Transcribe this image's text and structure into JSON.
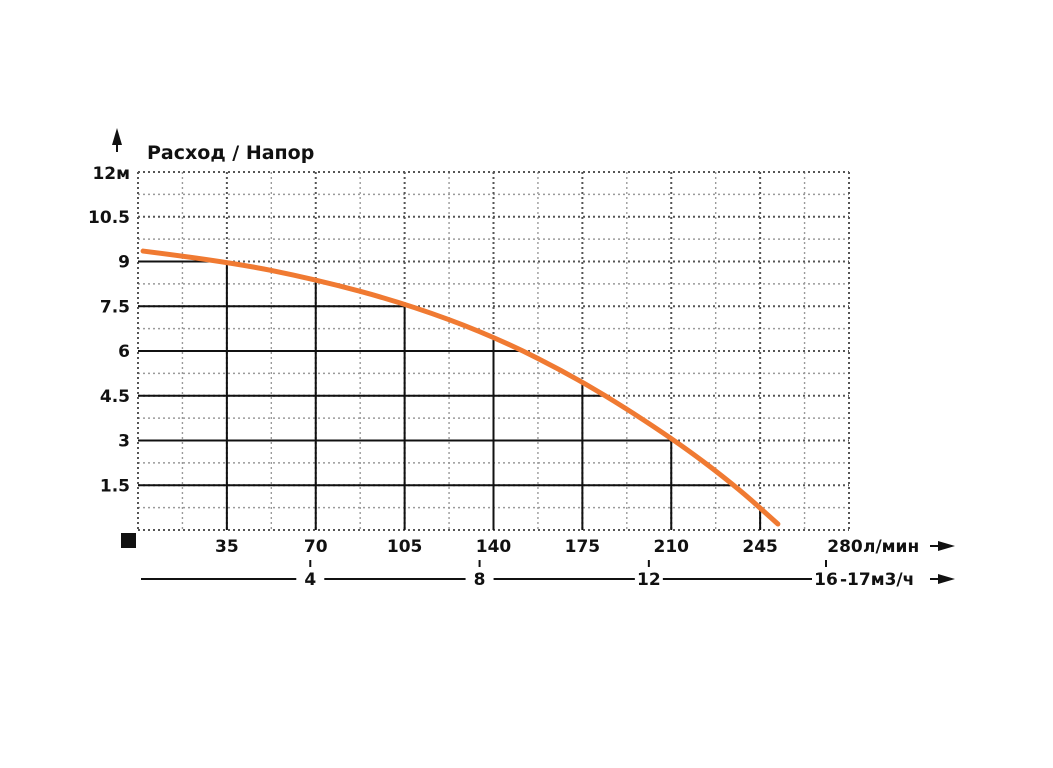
{
  "chart_data": {
    "type": "line",
    "title": "Расход / Напор",
    "y_unit_label": "12м",
    "y_ticks": [
      "1.5",
      "3",
      "4.5",
      "6",
      "7.5",
      "9",
      "10.5"
    ],
    "y_tick_values": [
      1.5,
      3,
      4.5,
      6,
      7.5,
      9,
      10.5
    ],
    "ylim": [
      0,
      12
    ],
    "x_ticks": [
      "35",
      "70",
      "105",
      "140",
      "175",
      "210",
      "245"
    ],
    "x_tick_values": [
      35,
      70,
      105,
      140,
      175,
      210,
      245
    ],
    "x_unit_tick": "280",
    "x_unit_label": "л/мин",
    "xlim": [
      0,
      280
    ],
    "x2_ticks": [
      "4",
      "8",
      "12"
    ],
    "x2_tick_values": [
      4,
      8,
      12
    ],
    "x2_end_tick": "16",
    "x2_unit_label": "-17м3/ч",
    "x2_lim": [
      0,
      16.8
    ],
    "grid": true,
    "series": [
      {
        "color": "#f07a32",
        "x": [
          2,
          35,
          70,
          105,
          140,
          175,
          210,
          235,
          252
        ],
        "y": [
          9.35,
          9.0,
          8.4,
          7.6,
          6.5,
          5.0,
          3.1,
          1.5,
          0.2
        ]
      }
    ]
  },
  "colors": {
    "curve": "#f07a32",
    "grid_major": "#111111",
    "grid_minor": "#9a9a9a",
    "text": "#111111"
  }
}
